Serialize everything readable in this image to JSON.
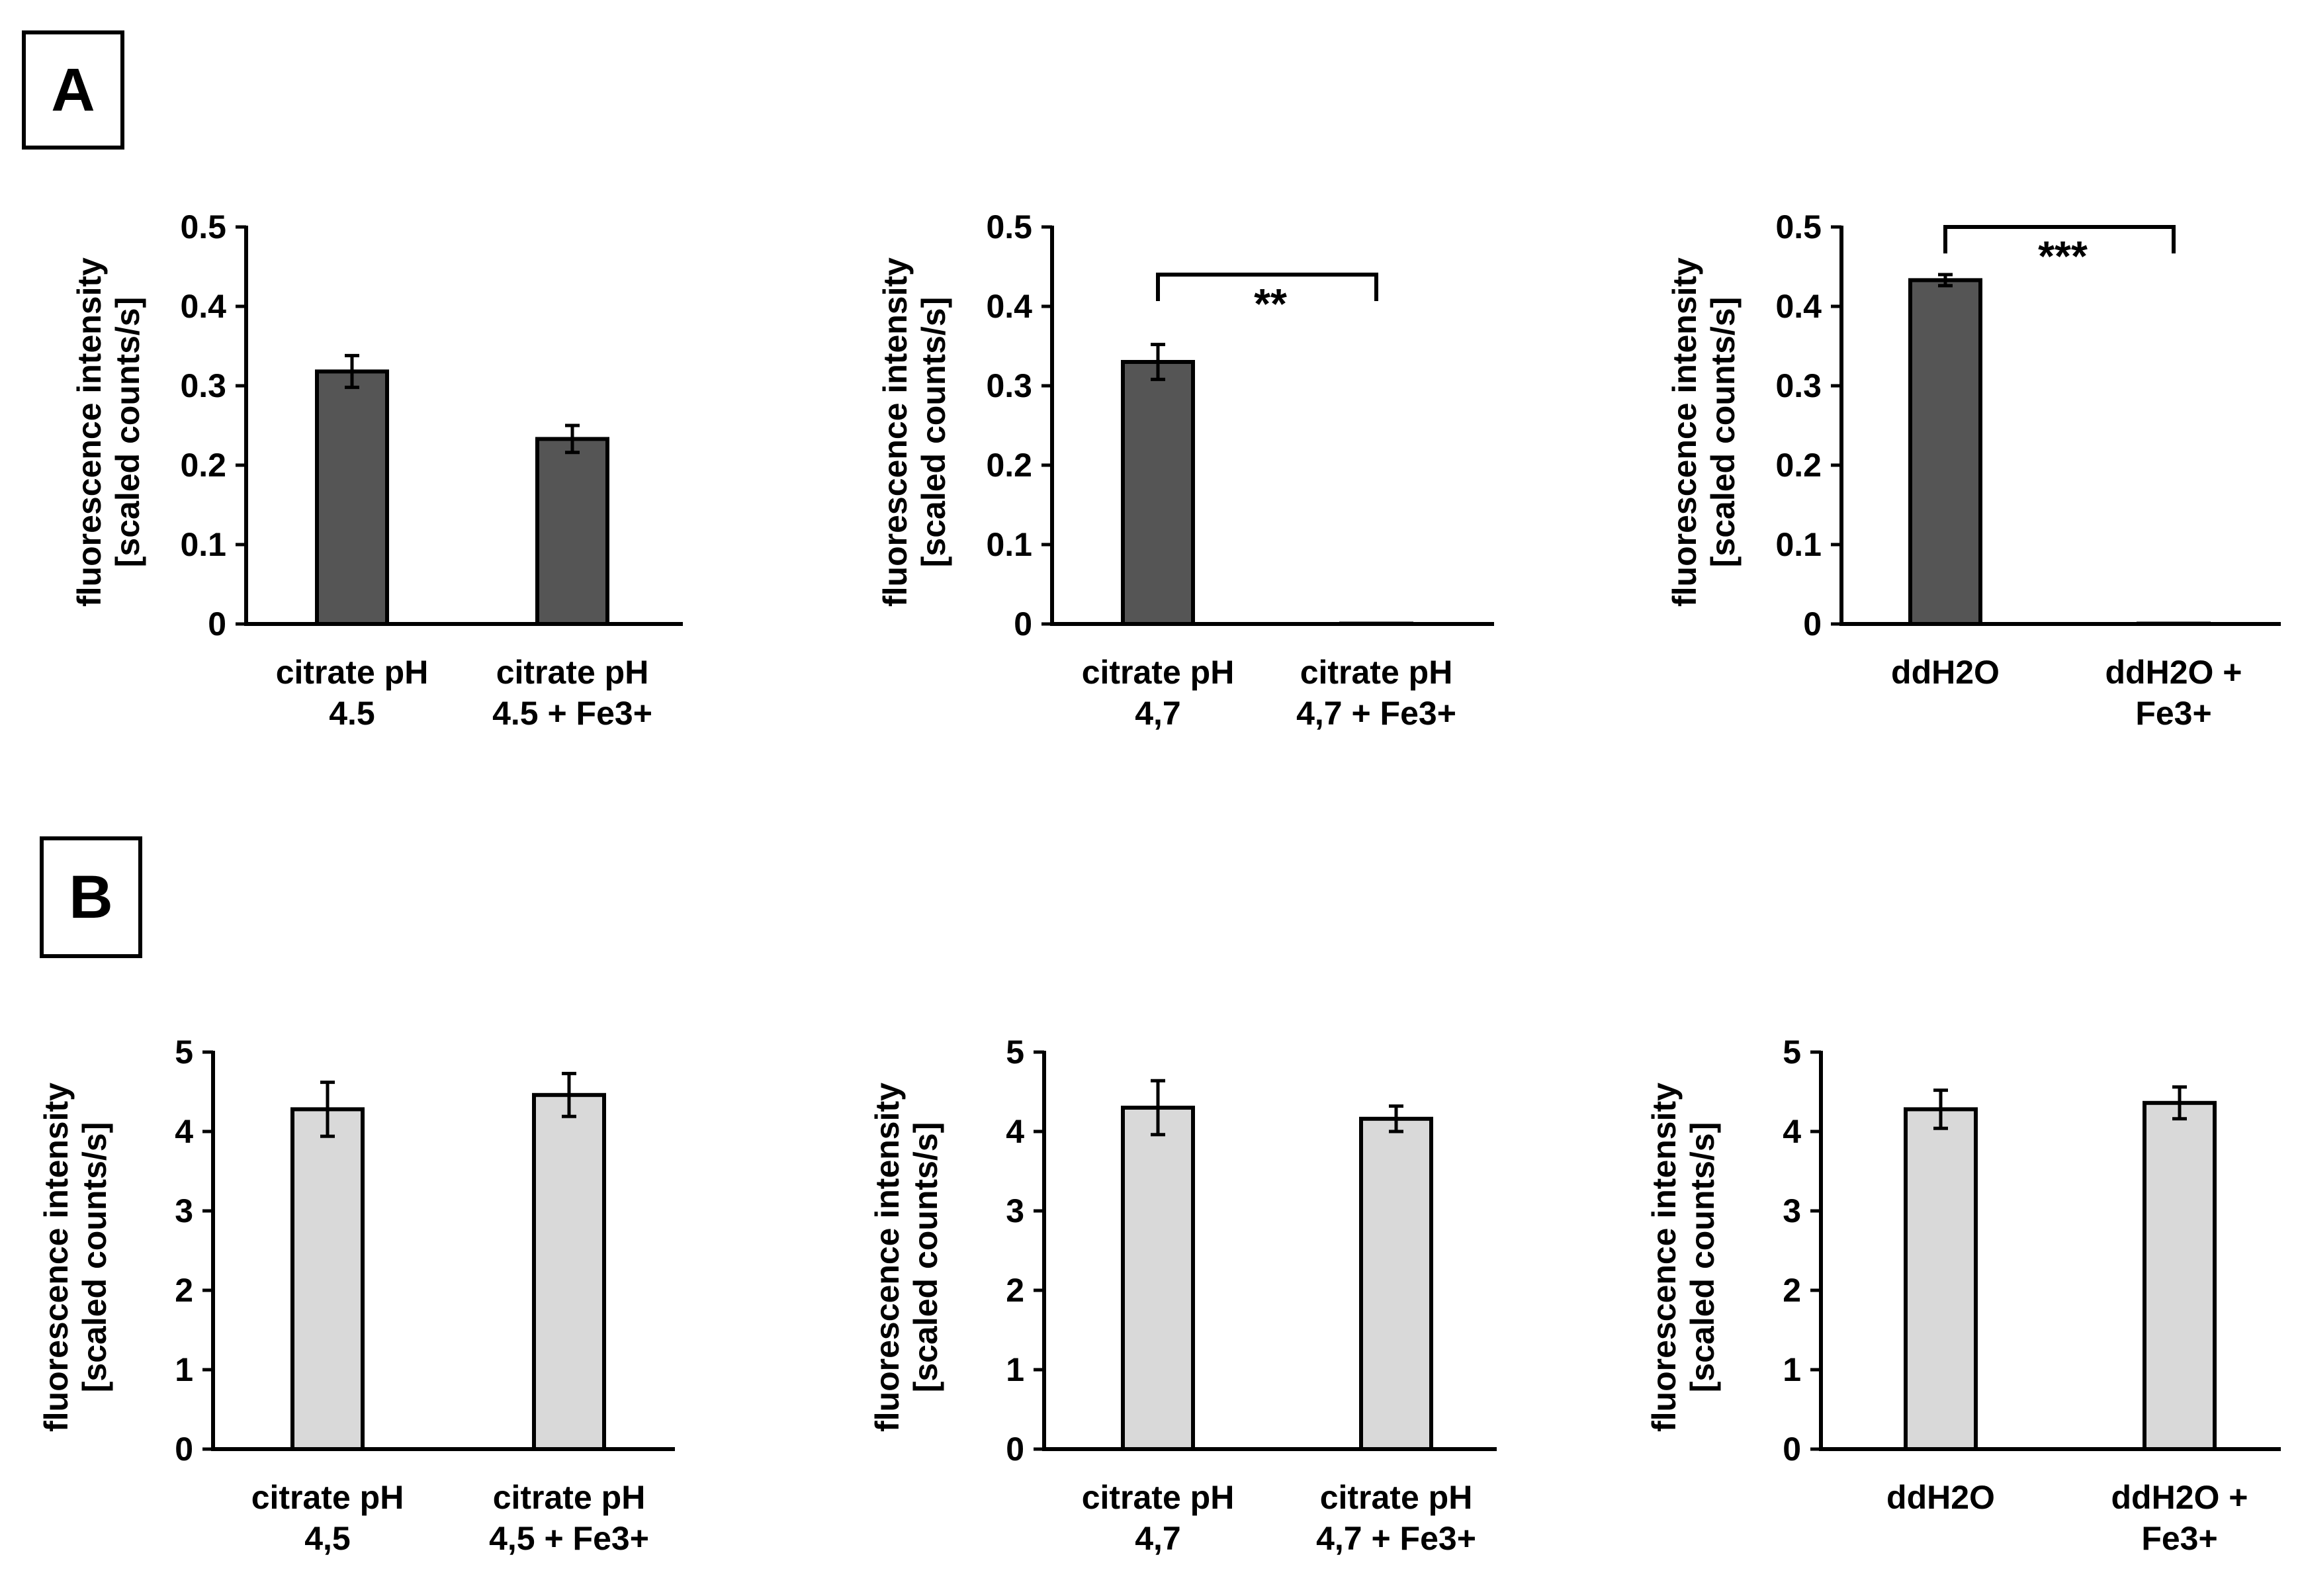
{
  "panels": [
    {
      "label": "A"
    },
    {
      "label": "B"
    }
  ],
  "chart_data": [
    {
      "type": "bar",
      "panel": "A",
      "title": "",
      "categories": [
        [
          "citrate pH",
          "4.5"
        ],
        [
          "citrate pH",
          "4.5 + Fe3+"
        ]
      ],
      "values": [
        0.318,
        0.233
      ],
      "errors": [
        0.02,
        0.017
      ],
      "ylabel": [
        "fluorescence intensity",
        "[scaled counts/s]"
      ],
      "xlabel": "",
      "ylim": [
        0,
        0.5
      ],
      "yticks": [
        "0",
        "0.1",
        "0.2",
        "0.3",
        "0.4",
        "0.5"
      ],
      "bar_color": "#555555",
      "significance": null
    },
    {
      "type": "bar",
      "panel": "A",
      "title": "",
      "categories": [
        [
          "citrate pH",
          "4,7"
        ],
        [
          "citrate pH",
          "4,7 + Fe3+"
        ]
      ],
      "values": [
        0.33,
        0.0
      ],
      "errors": [
        0.022,
        0.0
      ],
      "ylabel": [
        "fluorescence intensity",
        "[scaled counts/s]"
      ],
      "xlabel": "",
      "ylim": [
        0,
        0.5
      ],
      "yticks": [
        "0",
        "0.1",
        "0.2",
        "0.3",
        "0.4",
        "0.5"
      ],
      "bar_color": "#555555",
      "significance": {
        "label": "**",
        "from": 0,
        "to": 1,
        "y": 0.44
      }
    },
    {
      "type": "bar",
      "panel": "A",
      "title": "",
      "categories": [
        [
          "ddH2O"
        ],
        [
          "ddH2O +",
          "Fe3+"
        ]
      ],
      "values": [
        0.433,
        0.0
      ],
      "errors": [
        0.007,
        0.0
      ],
      "ylabel": [
        "fluorescence intensity",
        "[scaled counts/s]"
      ],
      "xlabel": "",
      "ylim": [
        0,
        0.5
      ],
      "yticks": [
        "0",
        "0.1",
        "0.2",
        "0.3",
        "0.4",
        "0.5"
      ],
      "bar_color": "#555555",
      "significance": {
        "label": "***",
        "from": 0,
        "to": 1,
        "y": 0.5
      }
    },
    {
      "type": "bar",
      "panel": "B",
      "title": "",
      "categories": [
        [
          "citrate pH",
          "4,5"
        ],
        [
          "citrate pH",
          "4,5 + Fe3+"
        ]
      ],
      "values": [
        4.28,
        4.46
      ],
      "errors": [
        0.34,
        0.27
      ],
      "ylabel": [
        "fluorescence intensity",
        "[scaled counts/s]"
      ],
      "xlabel": "",
      "ylim": [
        0,
        5
      ],
      "yticks": [
        "0",
        "1",
        "2",
        "3",
        "4",
        "5"
      ],
      "bar_color": "#d9d9d9",
      "significance": null
    },
    {
      "type": "bar",
      "panel": "B",
      "title": "",
      "categories": [
        [
          "citrate pH",
          "4,7"
        ],
        [
          "citrate pH",
          "4,7 + Fe3+"
        ]
      ],
      "values": [
        4.3,
        4.16
      ],
      "errors": [
        0.34,
        0.16
      ],
      "ylabel": [
        "fluorescence intensity",
        "[scaled counts/s]"
      ],
      "xlabel": "",
      "ylim": [
        0,
        5
      ],
      "yticks": [
        "0",
        "1",
        "2",
        "3",
        "4",
        "5"
      ],
      "bar_color": "#d9d9d9",
      "significance": null
    },
    {
      "type": "bar",
      "panel": "B",
      "title": "",
      "categories": [
        [
          "ddH2O"
        ],
        [
          "ddH2O +",
          "Fe3+"
        ]
      ],
      "values": [
        4.28,
        4.36
      ],
      "errors": [
        0.24,
        0.2
      ],
      "ylabel": [
        "fluorescence intensity",
        "[scaled counts/s]"
      ],
      "xlabel": "",
      "ylim": [
        0,
        5
      ],
      "yticks": [
        "0",
        "1",
        "2",
        "3",
        "4",
        "5"
      ],
      "bar_color": "#d9d9d9",
      "significance": null
    }
  ]
}
